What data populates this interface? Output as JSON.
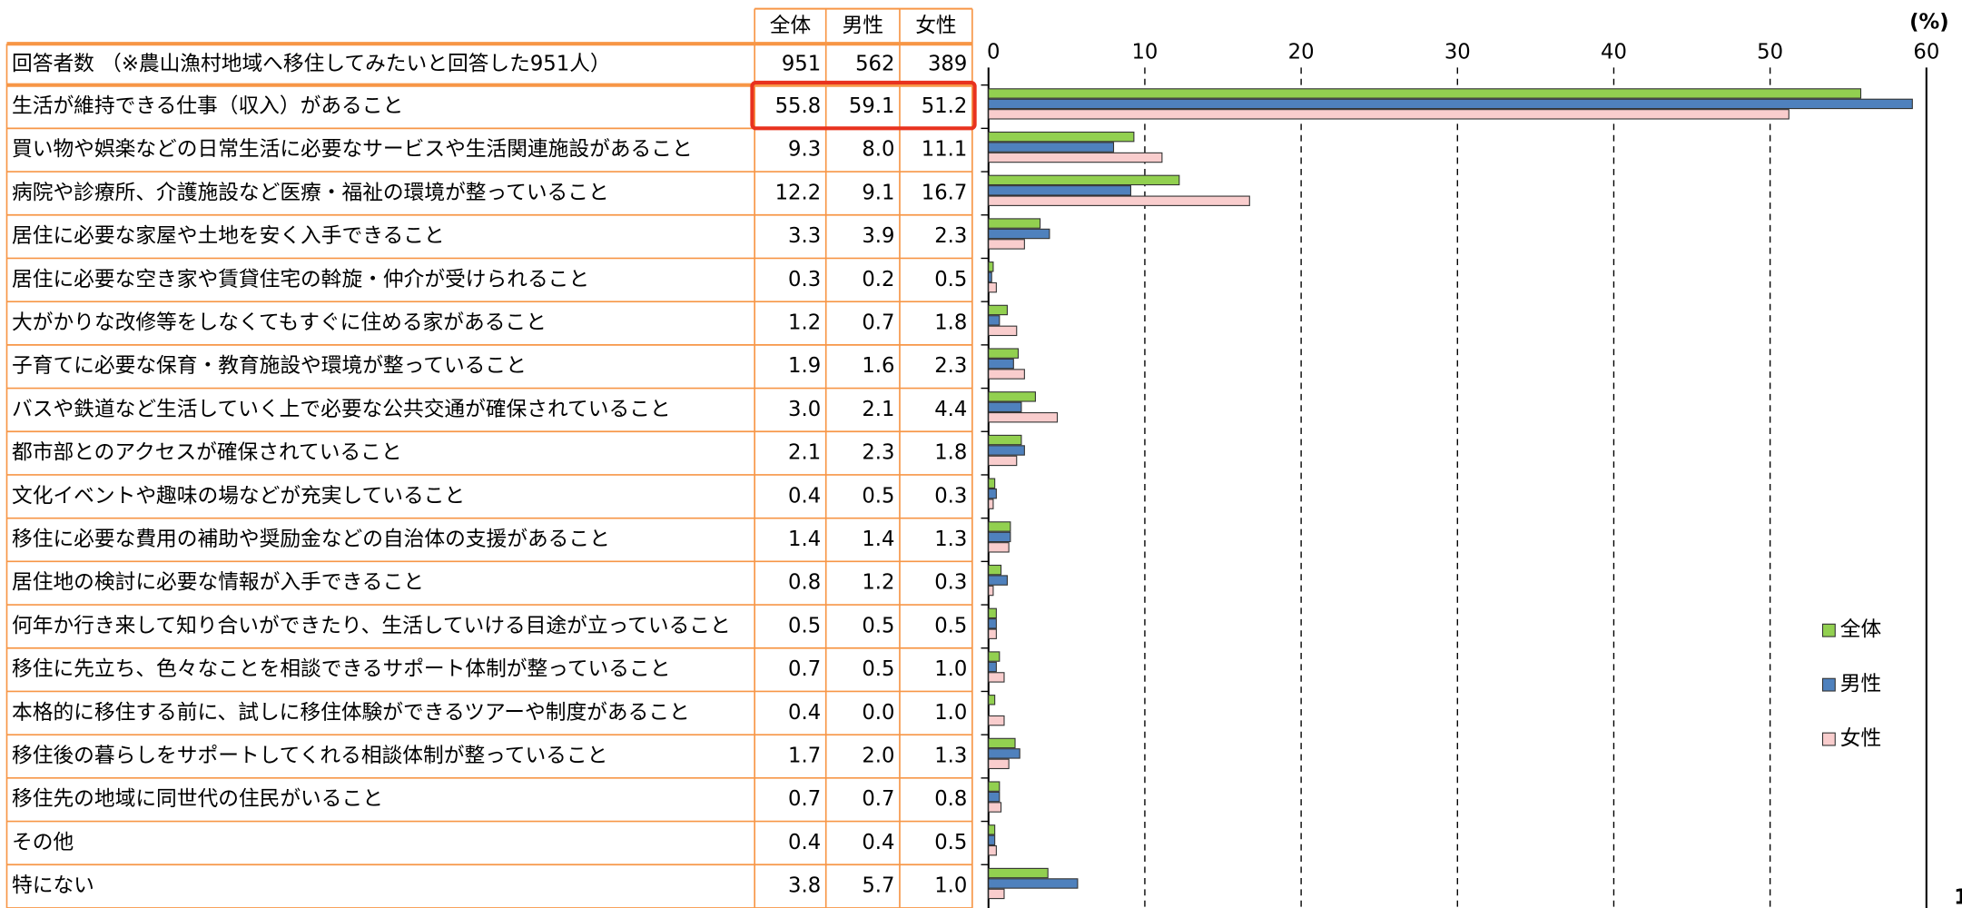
{
  "chart_data": {
    "type": "bar",
    "orientation": "horizontal",
    "respondents": {
      "label": "回答者数 （※農山漁村地域へ移住してみたいと回答した951人）",
      "values": [
        951,
        562,
        389
      ]
    },
    "categories": [
      "生活が維持できる仕事（収入）があること",
      "買い物や娯楽などの日常生活に必要なサービスや生活関連施設があること",
      "病院や診療所、介護施設など医療・福祉の環境が整っていること",
      "居住に必要な家屋や土地を安く入手できること",
      "居住に必要な空き家や賃貸住宅の斡旋・仲介が受けられること",
      "大がかりな改修等をしなくてもすぐに住める家があること",
      "子育てに必要な保育・教育施設や環境が整っていること",
      "バスや鉄道など生活していく上で必要な公共交通が確保されていること",
      "都市部とのアクセスが確保されていること",
      "文化イベントや趣味の場などが充実していること",
      "移住に必要な費用の補助や奨励金などの自治体の支援があること",
      "居住地の検討に必要な情報が入手できること",
      "何年か行き来して知り合いができたり、生活していける目途が立っていること",
      "移住に先立ち、色々なことを相談できるサポート体制が整っていること",
      "本格的に移住する前に、試しに移住体験ができるツアーや制度があること",
      "移住後の暮らしをサポートしてくれる相談体制が整っていること",
      "移住先の地域に同世代の住民がいること",
      "その他",
      "特にない"
    ],
    "series": [
      {
        "name": "全体",
        "color": "#92d050",
        "values": [
          55.8,
          9.3,
          12.2,
          3.3,
          0.3,
          1.2,
          1.9,
          3.0,
          2.1,
          0.4,
          1.4,
          0.8,
          0.5,
          0.7,
          0.4,
          1.7,
          0.7,
          0.4,
          3.8
        ],
        "value_labels": [
          "55.8",
          "9.3",
          "12.2",
          "3.3",
          "0.3",
          "1.2",
          "1.9",
          "3.0",
          "2.1",
          "0.4",
          "1.4",
          "0.8",
          "0.5",
          "0.7",
          "0.4",
          "1.7",
          "0.7",
          "0.4",
          "3.8"
        ]
      },
      {
        "name": "男性",
        "color": "#4f81bd",
        "values": [
          59.1,
          8.0,
          9.1,
          3.9,
          0.2,
          0.7,
          1.6,
          2.1,
          2.3,
          0.5,
          1.4,
          1.2,
          0.5,
          0.5,
          0.0,
          2.0,
          0.7,
          0.4,
          5.7
        ],
        "value_labels": [
          "59.1",
          "8.0",
          "9.1",
          "3.9",
          "0.2",
          "0.7",
          "1.6",
          "2.1",
          "2.3",
          "0.5",
          "1.4",
          "1.2",
          "0.5",
          "0.5",
          "0.0",
          "2.0",
          "0.7",
          "0.4",
          "5.7"
        ]
      },
      {
        "name": "女性",
        "color": "#f9cdcd",
        "values": [
          51.2,
          11.1,
          16.7,
          2.3,
          0.5,
          1.8,
          2.3,
          4.4,
          1.8,
          0.3,
          1.3,
          0.3,
          0.5,
          1.0,
          1.0,
          1.3,
          0.8,
          0.5,
          1.0
        ],
        "value_labels": [
          "51.2",
          "11.1",
          "16.7",
          "2.3",
          "0.5",
          "1.8",
          "2.3",
          "4.4",
          "1.8",
          "0.3",
          "1.3",
          "0.3",
          "0.5",
          "1.0",
          "1.0",
          "1.3",
          "0.8",
          "0.5",
          "1.0"
        ]
      }
    ],
    "x_unit": "(%)",
    "xlim": [
      0,
      60
    ],
    "xticks": [
      0,
      10,
      20,
      30,
      40,
      50,
      60
    ],
    "grid": true,
    "legend": "right",
    "page_number": "1"
  }
}
